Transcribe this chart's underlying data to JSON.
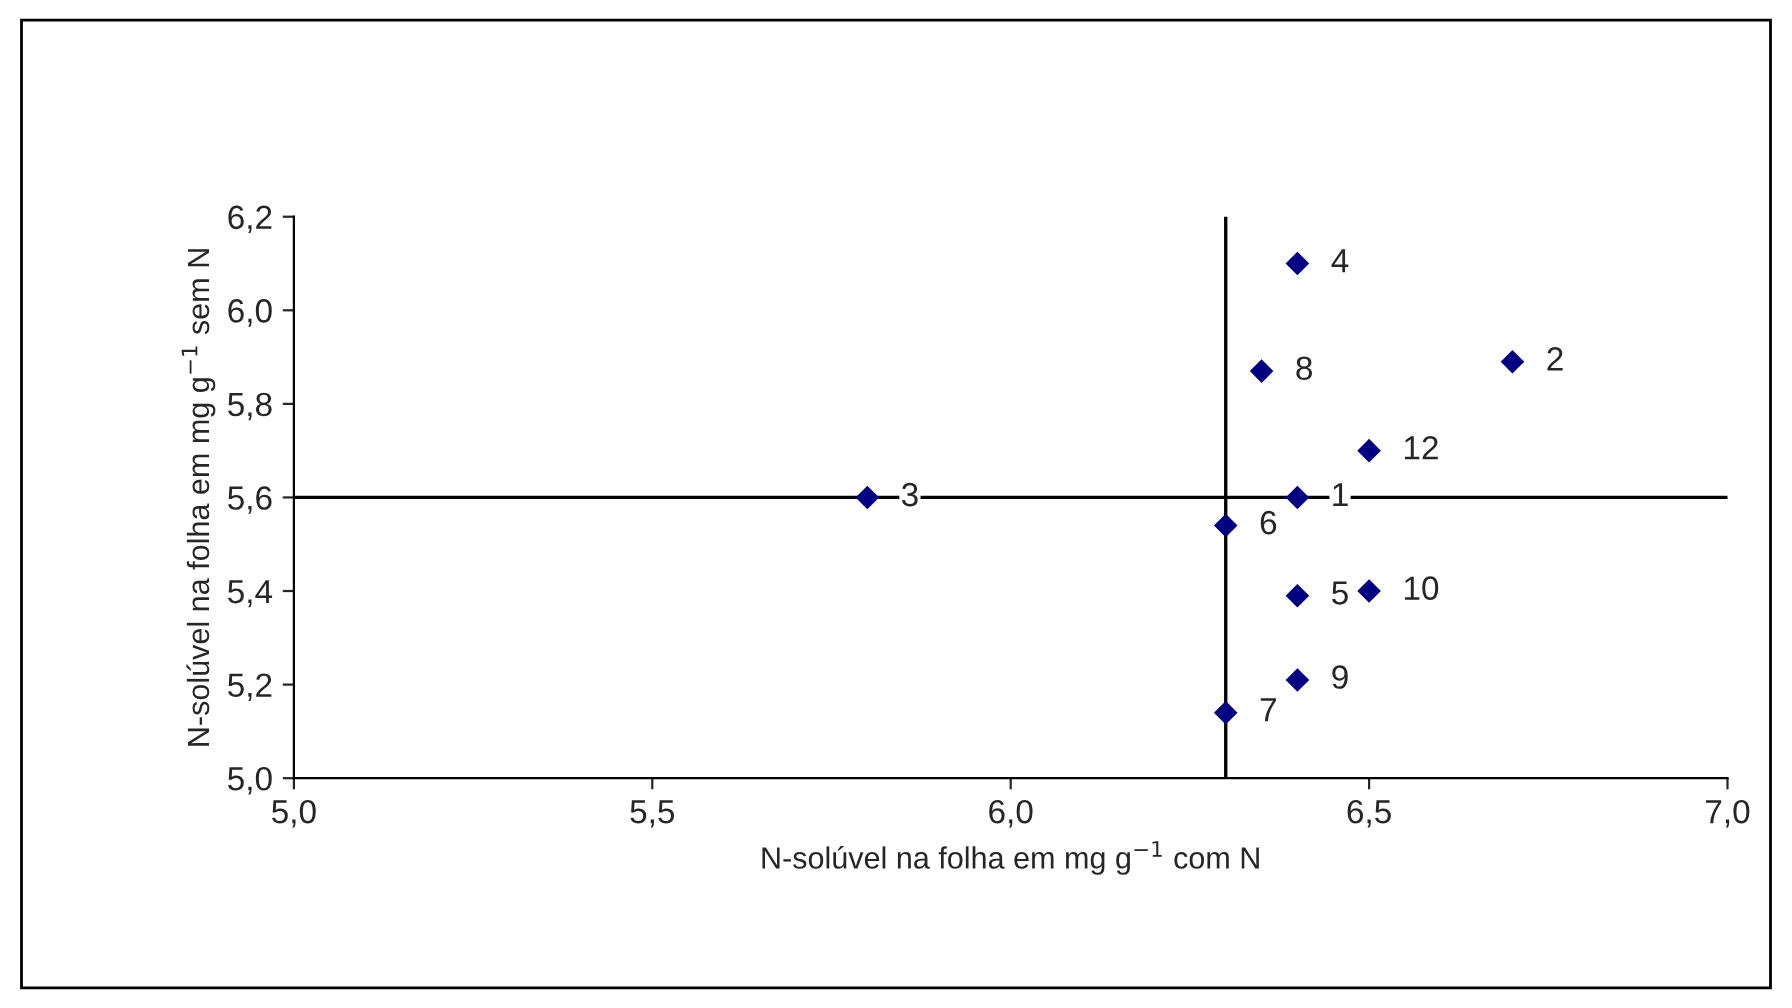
{
  "chart_data": {
    "type": "scatter",
    "xlabel": "N-solúvel na folha em mg g$^{−1}$ com N",
    "ylabel": "N-solúvel na folha em mg g$^{−1}$ sem N",
    "x": [
      6.4,
      6.7,
      5.8,
      6.4,
      6.4,
      6.3,
      6.3,
      6.35,
      6.4,
      6.5,
      6.5
    ],
    "series": [
      {
        "color": "#000080",
        "values": [
          5.6,
          5.89,
          5.6,
          6.1,
          5.39,
          5.54,
          5.14,
          5.87,
          5.21,
          5.4,
          5.7
        ]
      }
    ],
    "marker": "diamond",
    "xlim": [
      5.0,
      7.0
    ],
    "xticks": [
      {
        "value": 5.0,
        "label": "5,0"
      },
      {
        "value": 5.5,
        "label": "5,5"
      },
      {
        "value": 6.0,
        "label": "6,0"
      },
      {
        "value": 6.5,
        "label": "6,5"
      },
      {
        "value": 7.0,
        "label": "7,0"
      }
    ],
    "ylim": [
      5.0,
      6.2
    ],
    "yticks": [
      {
        "value": 5.0,
        "label": "5,0"
      },
      {
        "value": 5.2,
        "label": "5,2"
      },
      {
        "value": 5.4,
        "label": "5,4"
      },
      {
        "value": 5.6,
        "label": "5,6"
      },
      {
        "value": 5.8,
        "label": "5,8"
      },
      {
        "value": 6.0,
        "label": "6,0"
      },
      {
        "value": 6.2,
        "label": "6,2"
      }
    ],
    "ref_lines": [
      {
        "axis": "x",
        "value": 6.3,
        "color": "#000000"
      },
      {
        "axis": "y",
        "value": 5.6,
        "color": "#000000"
      }
    ],
    "annotations": [
      {
        "text": "1",
        "x": 6.4,
        "y": 5.6
      },
      {
        "text": "2",
        "x": 6.7,
        "y": 5.89
      },
      {
        "text": "3",
        "x": 5.8,
        "y": 5.6
      },
      {
        "text": "4",
        "x": 6.4,
        "y": 6.1
      },
      {
        "text": "5",
        "x": 6.4,
        "y": 5.39
      },
      {
        "text": "6",
        "x": 6.3,
        "y": 5.54
      },
      {
        "text": "7",
        "x": 6.3,
        "y": 5.14
      },
      {
        "text": "8",
        "x": 6.35,
        "y": 5.87
      },
      {
        "text": "9",
        "x": 6.4,
        "y": 5.21
      },
      {
        "text": "10",
        "x": 6.5,
        "y": 5.4
      },
      {
        "text": "12",
        "x": 6.5,
        "y": 5.7
      }
    ],
    "grid": false
  }
}
